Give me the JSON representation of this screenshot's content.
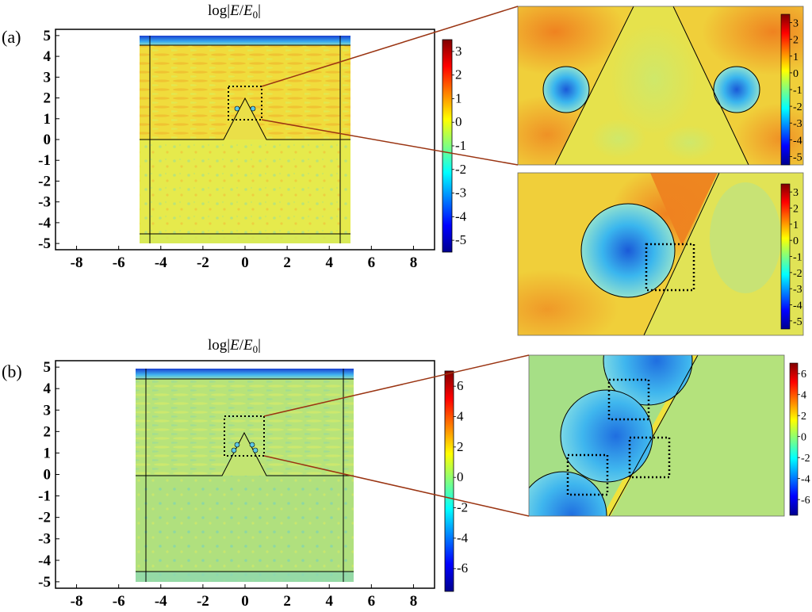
{
  "figure": {
    "panels": [
      {
        "label": "(a)",
        "title_main": "log|",
        "title_e": "E",
        "title_slash": "/",
        "title_e0": "E",
        "title_sub": "0",
        "title_end": "|"
      },
      {
        "label": "(b)",
        "title_main": "log|",
        "title_e": "E",
        "title_slash": "/",
        "title_e0": "E",
        "title_sub": "0",
        "title_end": "|"
      }
    ]
  },
  "chart_data": [
    {
      "type": "heatmap",
      "panel": "(a)",
      "title": "log|E/E0|",
      "xlabel": "",
      "ylabel": "",
      "xlim": [
        -9,
        9
      ],
      "ylim": [
        -5.3,
        5.3
      ],
      "xticks": [
        "-8",
        "-6",
        "-4",
        "-2",
        "0",
        "2",
        "4",
        "6",
        "8"
      ],
      "yticks": [
        "5",
        "4",
        "3",
        "2",
        "1",
        "0",
        "-1",
        "-2",
        "-3",
        "-4",
        "-5"
      ],
      "colorbar": {
        "range": [
          -5.5,
          3.5
        ],
        "ticks": [
          "3",
          "2",
          "1",
          "0",
          "-1",
          "-2",
          "-3",
          "-4",
          "-5"
        ]
      },
      "structure": {
        "domain_x": [
          -5,
          5
        ],
        "domain_y": [
          -5,
          5
        ],
        "pml_thickness": 0.5,
        "interface_y": 0,
        "triangle": {
          "base_x": [
            -1,
            1
          ],
          "apex": [
            0,
            2
          ]
        },
        "zoom_box": {
          "x": [
            -0.8,
            0.8
          ],
          "y": [
            1,
            2.6
          ]
        }
      }
    },
    {
      "type": "heatmap",
      "panel": "(b)",
      "title": "log|E/E0|",
      "xlabel": "",
      "ylabel": "",
      "xlim": [
        -9,
        9
      ],
      "ylim": [
        -5.3,
        5.3
      ],
      "xticks": [
        "-8",
        "-6",
        "-4",
        "-2",
        "0",
        "2",
        "4",
        "6",
        "8"
      ],
      "yticks": [
        "5",
        "4",
        "3",
        "2",
        "1",
        "0",
        "-1",
        "-2",
        "-3",
        "-4",
        "-5"
      ],
      "colorbar": {
        "range": [
          -7.5,
          7
        ],
        "ticks": [
          "6",
          "4",
          "2",
          "0",
          "-2",
          "-4",
          "-6"
        ]
      },
      "structure": {
        "domain_x": [
          -5,
          5
        ],
        "domain_y": [
          -5,
          5
        ],
        "pml_thickness": 0.5,
        "interface_y": 0,
        "triangle": {
          "base_x": [
            -1,
            1
          ],
          "apex": [
            0,
            2
          ]
        },
        "zoom_box": {
          "x": [
            -1,
            1
          ],
          "y": [
            1,
            2.8
          ]
        }
      }
    },
    {
      "type": "heatmap",
      "panel": "(a) zoom 1",
      "colorbar": {
        "range": [
          -5.5,
          3.5
        ],
        "ticks": [
          "3",
          "2",
          "1",
          "0",
          "-1",
          "-2",
          "-3",
          "-4",
          "-5"
        ]
      }
    },
    {
      "type": "heatmap",
      "panel": "(a) zoom 2",
      "colorbar": {
        "range": [
          -5.5,
          3.5
        ],
        "ticks": [
          "3",
          "2",
          "1",
          "0",
          "-1",
          "-2",
          "-3",
          "-4",
          "-5"
        ]
      }
    },
    {
      "type": "heatmap",
      "panel": "(b) zoom",
      "colorbar": {
        "range": [
          -7.5,
          7
        ],
        "ticks": [
          "6",
          "4",
          "2",
          "0",
          "-2",
          "-4",
          "-6"
        ]
      }
    }
  ],
  "colors": {
    "connector": "#9a3412",
    "field_a_upper": "#f2dc3c",
    "field_a_lower": "#e8ea4a",
    "field_b": "#b4e27a",
    "pml_edge": "#1a4fd8",
    "zoom_a_bg": "#f2cf38",
    "zoom_a_hot": "#ef8a24",
    "zoom_b_bg": "#a6df86"
  }
}
